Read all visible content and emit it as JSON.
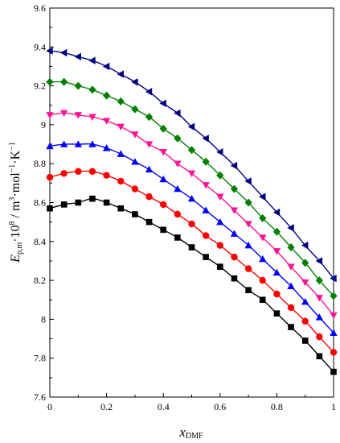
{
  "chart_data": {
    "type": "line",
    "xlabel": {
      "main": "x",
      "sub": "DMF"
    },
    "ylabel": {
      "main": "E",
      "sub": "p,m",
      "rest1": "·10",
      "sup1": "8",
      "rest2": " / m",
      "sup2": "3",
      "rest3": "·mol",
      "sup3": "−1",
      "rest4": "·K",
      "sup4": "−1"
    },
    "xlim": [
      0,
      1
    ],
    "ylim": [
      7.6,
      9.6
    ],
    "xticks": [
      "0",
      "0.2",
      "0.4",
      "0.6",
      "0.8",
      "1"
    ],
    "yticks": [
      "7.6",
      "7.8",
      "8",
      "8.2",
      "8.4",
      "8.6",
      "8.8",
      "9",
      "9.2",
      "9.4",
      "9.6"
    ],
    "x": [
      0,
      0.05,
      0.1,
      0.15,
      0.2,
      0.25,
      0.3,
      0.35,
      0.4,
      0.45,
      0.5,
      0.55,
      0.6,
      0.65,
      0.7,
      0.75,
      0.8,
      0.85,
      0.9,
      0.95,
      1
    ],
    "series": [
      {
        "marker": "square",
        "color": "#000000",
        "values": [
          8.57,
          8.59,
          8.6,
          8.62,
          8.6,
          8.57,
          8.54,
          8.5,
          8.46,
          8.42,
          8.37,
          8.32,
          8.27,
          8.21,
          8.15,
          8.1,
          8.03,
          7.96,
          7.89,
          7.81,
          7.73
        ]
      },
      {
        "marker": "circle",
        "color": "#ff0000",
        "values": [
          8.73,
          8.75,
          8.76,
          8.76,
          8.74,
          8.71,
          8.67,
          8.63,
          8.59,
          8.54,
          8.49,
          8.43,
          8.38,
          8.32,
          8.26,
          8.2,
          8.13,
          8.06,
          7.99,
          7.91,
          7.83
        ]
      },
      {
        "marker": "triangle-up",
        "color": "#0000ff",
        "values": [
          8.89,
          8.9,
          8.9,
          8.9,
          8.88,
          8.85,
          8.81,
          8.77,
          8.72,
          8.67,
          8.62,
          8.56,
          8.5,
          8.44,
          8.38,
          8.31,
          8.24,
          8.17,
          8.09,
          8.01,
          7.93
        ]
      },
      {
        "marker": "triangle-down",
        "color": "#ff1493",
        "values": [
          9.05,
          9.06,
          9.05,
          9.04,
          9.02,
          8.99,
          8.95,
          8.9,
          8.86,
          8.8,
          8.75,
          8.69,
          8.63,
          8.56,
          8.49,
          8.42,
          8.35,
          8.27,
          8.19,
          8.11,
          8.02
        ]
      },
      {
        "marker": "diamond",
        "color": "#008000",
        "values": [
          9.22,
          9.22,
          9.2,
          9.18,
          9.15,
          9.12,
          9.08,
          9.04,
          8.98,
          8.93,
          8.87,
          8.81,
          8.74,
          8.67,
          8.6,
          8.52,
          8.45,
          8.37,
          8.29,
          8.2,
          8.12
        ]
      },
      {
        "marker": "triangle-left",
        "color": "#000080",
        "values": [
          9.38,
          9.37,
          9.35,
          9.33,
          9.3,
          9.26,
          9.22,
          9.17,
          9.11,
          9.06,
          8.99,
          8.93,
          8.86,
          8.79,
          8.71,
          8.63,
          8.55,
          8.47,
          8.38,
          8.3,
          8.21
        ]
      }
    ]
  }
}
